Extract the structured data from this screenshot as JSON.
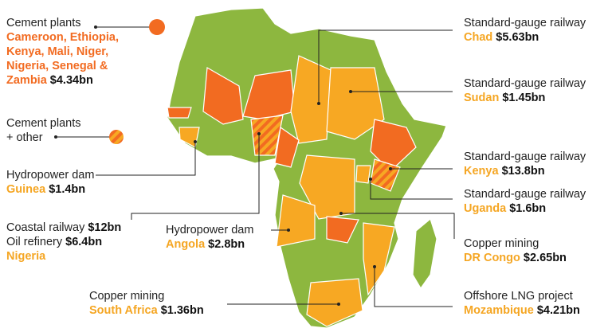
{
  "left": [
    {
      "project": "Cement plants",
      "places": [
        "Cameroon, Ethiopia,",
        "Kenya, Mali, Niger,",
        "Nigeria, Senegal &",
        "Zambia"
      ],
      "amount": "$4.34bn"
    },
    {
      "project": "Cement plants",
      "extra": "+ other"
    },
    {
      "project": "Hydropower dam",
      "places": "Guinea",
      "amount": "$1.4bn"
    },
    {
      "projects": [
        {
          "project": "Coastal railway",
          "amount": "$12bn"
        },
        {
          "project": "Oil refinery",
          "amount": "$6.4bn"
        }
      ],
      "places": "Nigeria"
    },
    {
      "project": "Hydropower dam",
      "places": "Angola",
      "amount": "$2.8bn"
    },
    {
      "project": "Copper mining",
      "places": "South Africa",
      "amount": "$1.36bn"
    }
  ],
  "right": [
    {
      "project": "Standard-gauge railway",
      "places": "Chad",
      "amount": "$5.63bn"
    },
    {
      "project": "Standard-gauge railway",
      "places": "Sudan",
      "amount": "$1.45bn"
    },
    {
      "project": "Standard-gauge railway",
      "places": "Kenya",
      "amount": "$13.8bn"
    },
    {
      "project": "Standard-gauge railway",
      "places": "Uganda",
      "amount": "$1.6bn"
    },
    {
      "project": "Copper mining",
      "places": "DR Congo",
      "amount": "$2.65bn"
    },
    {
      "project": "Offshore LNG project",
      "places": "Mozambique",
      "amount": "$4.21bn"
    }
  ]
}
